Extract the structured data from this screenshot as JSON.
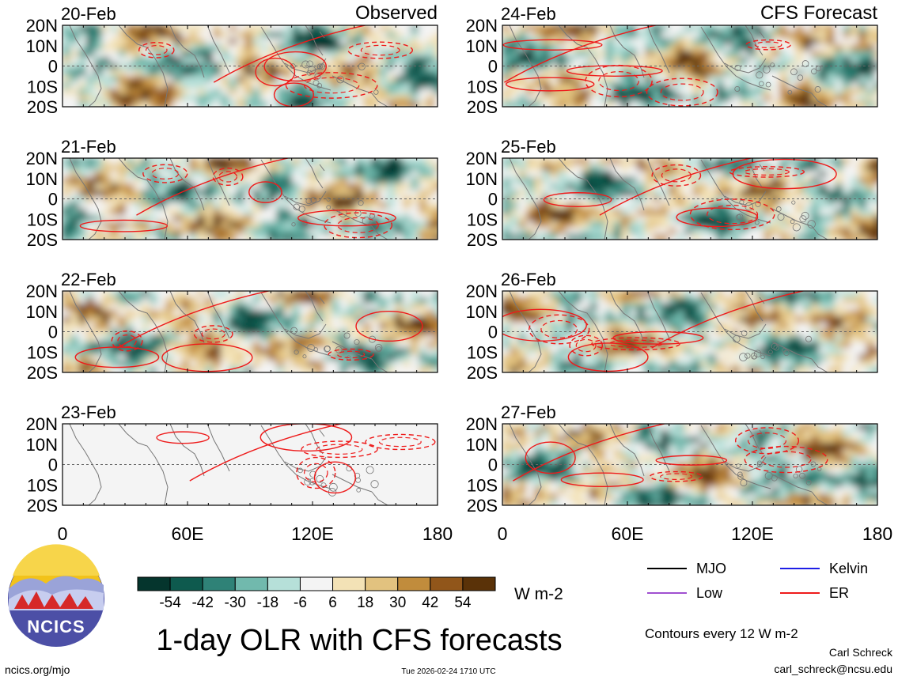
{
  "chart_data": {
    "type": "heatmap",
    "title": "1-day OLR with CFS forecasts",
    "column_headers": {
      "left": "Observed",
      "right": "CFS Forecast"
    },
    "panels": [
      {
        "date": "20-Feb",
        "column": "left",
        "source": "observed"
      },
      {
        "date": "21-Feb",
        "column": "left",
        "source": "observed"
      },
      {
        "date": "22-Feb",
        "column": "left",
        "source": "observed"
      },
      {
        "date": "23-Feb",
        "column": "left",
        "source": "observed",
        "missing_shading": true
      },
      {
        "date": "24-Feb",
        "column": "right",
        "source": "forecast"
      },
      {
        "date": "25-Feb",
        "column": "right",
        "source": "forecast"
      },
      {
        "date": "26-Feb",
        "column": "right",
        "source": "forecast"
      },
      {
        "date": "27-Feb",
        "column": "right",
        "source": "forecast"
      }
    ],
    "x_axis": {
      "range": [
        0,
        180
      ],
      "ticks": [
        0,
        60,
        120,
        180
      ],
      "tick_labels": [
        "0",
        "60E",
        "120E",
        "180"
      ]
    },
    "y_axis": {
      "range": [
        -20,
        20
      ],
      "ticks": [
        20,
        10,
        0,
        -10,
        -20
      ],
      "tick_labels": [
        "20N",
        "10N",
        "0",
        "10S",
        "20S"
      ]
    },
    "colorbar": {
      "unit": "W m-2",
      "labels": [
        "-54",
        "-42",
        "-30",
        "-18",
        "-6",
        "6",
        "18",
        "30",
        "42",
        "54"
      ],
      "colors": [
        "#05352d",
        "#0e5a4e",
        "#2f8277",
        "#71b9ad",
        "#b6e0d9",
        "#f4f4f4",
        "#f3e2b6",
        "#e2c27f",
        "#c18c3c",
        "#91561a",
        "#5a3208"
      ]
    },
    "contour_legend": [
      {
        "name": "MJO",
        "color": "#000000"
      },
      {
        "name": "Kelvin",
        "color": "#1e1ee6"
      },
      {
        "name": "Low",
        "color": "#a050d0"
      },
      {
        "name": "ER",
        "color": "#ee1b1b"
      }
    ],
    "contour_note": "Contours every 12 W m-2"
  },
  "logo_text": "NCICS",
  "footer": {
    "url": "ncics.org/mjo",
    "timestamp": "Tue 2026-02-24 1710 UTC",
    "author": "Carl Schreck",
    "email": "carl_schreck@ncsu.edu"
  }
}
